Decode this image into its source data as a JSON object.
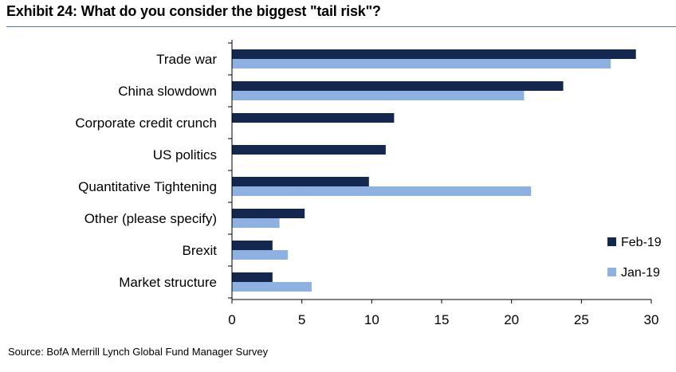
{
  "title": "Exhibit 24: What do you consider the biggest \"tail risk\"?",
  "source": "Source: BofA Merrill Lynch Global Fund Manager Survey",
  "colors": {
    "feb": "#14284f",
    "jan": "#8db1e1",
    "axis": "#000000"
  },
  "chart_data": {
    "type": "bar",
    "orientation": "horizontal",
    "categories": [
      "Trade war",
      "China slowdown",
      "Corporate credit crunch",
      "US politics",
      "Quantitative Tightening",
      "Other (please specify)",
      "Brexit",
      "Market structure"
    ],
    "series": [
      {
        "name": "Feb-19",
        "values": [
          28.9,
          23.7,
          11.6,
          11.0,
          9.8,
          5.2,
          2.9,
          2.9
        ]
      },
      {
        "name": "Jan-19",
        "values": [
          27.1,
          20.9,
          null,
          null,
          21.4,
          3.4,
          4.0,
          5.7
        ]
      }
    ],
    "xlim": [
      0,
      30
    ],
    "xticks": [
      "0",
      "5",
      "10",
      "15",
      "20",
      "25",
      "30"
    ],
    "legend": "bottom-right",
    "grid": false
  }
}
